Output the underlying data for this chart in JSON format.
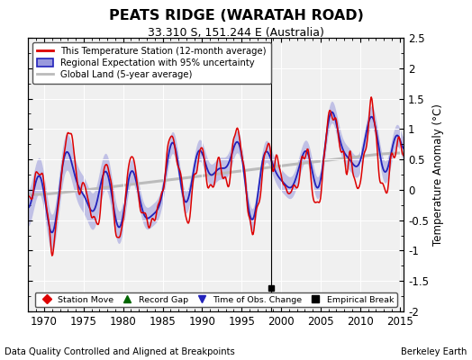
{
  "title": "PEATS RIDGE (WARATAH ROAD)",
  "subtitle": "33.310 S, 151.244 E (Australia)",
  "ylabel": "Temperature Anomaly (°C)",
  "footer_left": "Data Quality Controlled and Aligned at Breakpoints",
  "footer_right": "Berkeley Earth",
  "xlim": [
    1968.0,
    2015.5
  ],
  "ylim": [
    -2.0,
    2.5
  ],
  "yticks": [
    -2.0,
    -1.5,
    -1.0,
    -0.5,
    0.0,
    0.5,
    1.0,
    1.5,
    2.0,
    2.5
  ],
  "xticks": [
    1970,
    1975,
    1980,
    1985,
    1990,
    1995,
    2000,
    2005,
    2010,
    2015
  ],
  "bg_color": "#f0f0f0",
  "station_color": "#dd0000",
  "regional_color": "#2222bb",
  "regional_fill_color": "#9999dd",
  "global_color": "#bbbbbb",
  "obs_change_year": 1998.7,
  "empirical_break_year": 1998.7,
  "empirical_break_value": -1.62,
  "legend_entries": [
    {
      "label": "This Temperature Station (12-month average)",
      "color": "#dd0000",
      "lw": 2
    },
    {
      "label": "Regional Expectation with 95% uncertainty",
      "color": "#2222bb",
      "fill": "#9999dd"
    },
    {
      "label": "Global Land (5-year average)",
      "color": "#bbbbbb",
      "lw": 2
    }
  ],
  "marker_legend": [
    {
      "marker": "D",
      "color": "#dd0000",
      "label": "Station Move"
    },
    {
      "marker": "^",
      "color": "#006600",
      "label": "Record Gap"
    },
    {
      "marker": "v",
      "color": "#2222bb",
      "label": "Time of Obs. Change"
    },
    {
      "marker": "s",
      "color": "#000000",
      "label": "Empirical Break"
    }
  ]
}
